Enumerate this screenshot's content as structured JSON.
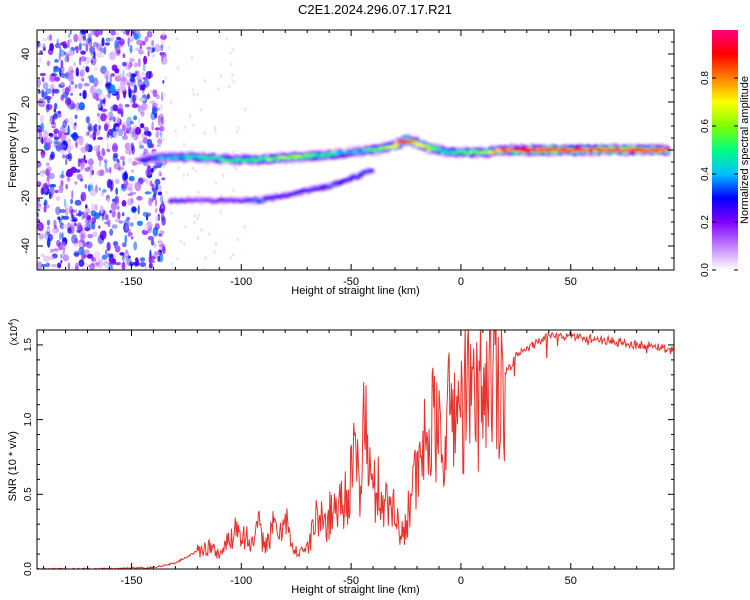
{
  "figure_title": "C2E1.2024.296.07.17.R21",
  "chart_data": [
    {
      "type": "heatmap",
      "title": "C2E1.2024.296.07.17.R21",
      "xlabel": "Height of straight line (km)",
      "ylabel": "Frequency (Hz)",
      "xlim": [
        -193,
        97
      ],
      "ylim": [
        -50,
        50
      ],
      "x_ticks": [
        -150,
        -100,
        -50,
        0,
        50
      ],
      "y_ticks": [
        -40,
        -20,
        0,
        20,
        40
      ],
      "grid": false,
      "colorbar": {
        "label": "Normalized spectral amplitude",
        "range": [
          0,
          1
        ],
        "ticks": [
          0.0,
          0.2,
          0.4,
          0.6,
          0.8
        ],
        "tick_labels": [
          "0.0",
          "0.2",
          "0.4",
          "0.6",
          "0.8"
        ],
        "colormap": [
          "#ffffff",
          "#c080ff",
          "#8000ff",
          "#0000ff",
          "#00c0ff",
          "#00ff80",
          "#80ff00",
          "#ffff00",
          "#ff8000",
          "#ff0000",
          "#ff0080"
        ]
      },
      "features": {
        "main_trace": {
          "x": [
            -145,
            -135,
            -120,
            -105,
            -90,
            -75,
            -60,
            -50,
            -40,
            -30,
            -25,
            -20,
            -15,
            -10,
            -5,
            0,
            5,
            10,
            20,
            40,
            60,
            80,
            95
          ],
          "y": [
            -4,
            -3,
            -3,
            -4,
            -4,
            -3,
            -2,
            -1,
            0,
            2,
            4,
            3,
            1,
            0,
            -1,
            -1,
            -1,
            -1,
            0,
            0,
            0,
            0,
            0
          ],
          "peak_amplitude": [
            0.3,
            0.4,
            0.5,
            0.5,
            0.6,
            0.6,
            0.5,
            0.4,
            0.5,
            0.7,
            0.9,
            0.8,
            0.6,
            0.5,
            0.5,
            0.5,
            0.6,
            0.6,
            0.9,
            0.95,
            0.95,
            0.95,
            0.95
          ]
        },
        "secondary_trace": {
          "x": [
            -132,
            -120,
            -100,
            -92,
            -80,
            -70,
            -60,
            -50,
            -40
          ],
          "y": [
            -21,
            -21,
            -21,
            -21,
            -19,
            -17,
            -15,
            -12,
            -8
          ],
          "peak_amplitude": [
            0.3,
            0.2,
            0.25,
            0.4,
            0.3,
            0.3,
            0.35,
            0.35,
            0.3
          ]
        },
        "noise_region": {
          "x": [
            -193,
            -138
          ],
          "y": [
            -50,
            50
          ],
          "amplitude": 0.25
        }
      }
    },
    {
      "type": "line",
      "xlabel": "Height of straight line (km)",
      "ylabel": "SNR (10 * v/v)",
      "y_multiplier_label": "(x10",
      "y_multiplier_exp": "4",
      "y_multiplier_close": ")",
      "xlim": [
        -193,
        97
      ],
      "ylim": [
        0,
        1.6
      ],
      "x_ticks": [
        -150,
        -100,
        -50,
        0,
        50
      ],
      "y_ticks": [
        0.0,
        0.5,
        1.0,
        1.5
      ],
      "y_tick_labels": [
        "0.0",
        "0.5",
        "1.0",
        "1.5"
      ],
      "grid": false,
      "series": [
        {
          "color": "#e8322d",
          "x": [
            -193,
            -160,
            -140,
            -130,
            -125,
            -120,
            -115,
            -110,
            -105,
            -102,
            -100,
            -97,
            -95,
            -92,
            -90,
            -87,
            -85,
            -82,
            -80,
            -78,
            -76,
            -72,
            -70,
            -66,
            -62,
            -58,
            -55,
            -52,
            -50,
            -48,
            -46,
            -44,
            -42,
            -40,
            -38,
            -35,
            -32,
            -30,
            -28,
            -26,
            -24,
            -22,
            -20,
            -18,
            -15,
            -12,
            -10,
            -6,
            -3,
            0,
            3,
            6,
            10,
            15,
            20,
            25,
            30,
            35,
            40,
            45,
            50,
            55,
            60,
            65,
            70,
            75,
            80,
            85,
            90,
            95,
            97
          ],
          "y": [
            0.0,
            0.0,
            0.01,
            0.04,
            0.08,
            0.12,
            0.15,
            0.1,
            0.2,
            0.3,
            0.25,
            0.2,
            0.16,
            0.28,
            0.18,
            0.2,
            0.3,
            0.22,
            0.45,
            0.2,
            0.1,
            0.15,
            0.12,
            0.35,
            0.3,
            0.4,
            0.45,
            0.5,
            0.6,
            0.75,
            0.55,
            1.05,
            0.7,
            0.5,
            0.55,
            0.45,
            0.4,
            0.5,
            0.2,
            0.25,
            0.4,
            0.65,
            0.55,
            0.75,
            0.9,
            0.95,
            0.85,
            1.0,
            1.1,
            1.05,
            1.2,
            1.1,
            1.25,
            1.3,
            1.3,
            1.42,
            1.47,
            1.52,
            1.56,
            1.56,
            1.56,
            1.55,
            1.54,
            1.53,
            1.52,
            1.51,
            1.5,
            1.5,
            1.49,
            1.47,
            1.46
          ]
        }
      ]
    }
  ]
}
